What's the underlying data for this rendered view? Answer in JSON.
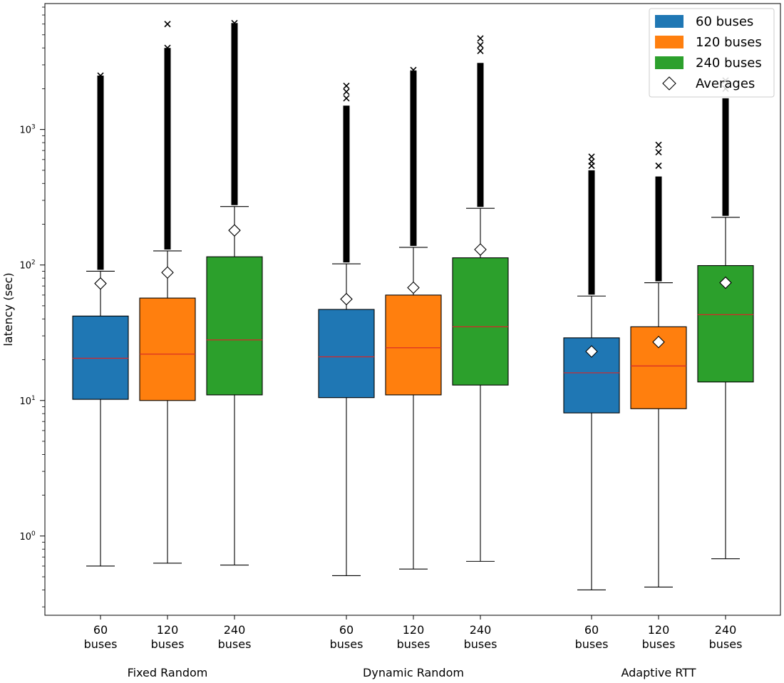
{
  "chart_data": {
    "type": "boxplot",
    "ylabel": "latency (sec)",
    "yscale": "log",
    "ylim": [
      0.26,
      8500
    ],
    "yticks": [
      {
        "value": 1,
        "label": "10^0"
      },
      {
        "value": 10,
        "label": "10^1"
      },
      {
        "value": 100,
        "label": "10^2"
      },
      {
        "value": 1000,
        "label": "10^3"
      }
    ],
    "legend": {
      "placement": "top-right",
      "entries": [
        {
          "label": "60 buses",
          "kind": "patch",
          "color": "#1f77b4"
        },
        {
          "label": "120 buses",
          "kind": "patch",
          "color": "#ff7f0e"
        },
        {
          "label": "240 buses",
          "kind": "patch",
          "color": "#2ca02c"
        },
        {
          "label": "Averages",
          "kind": "diamond",
          "color": "#ffffff"
        }
      ]
    },
    "median_color": "#d62728",
    "groups": [
      {
        "name": "Fixed Random",
        "boxes": [
          {
            "label_top": "60",
            "label_bottom": "buses",
            "color": "#1f77b4",
            "whisker_low": 0.6,
            "q1": 10.2,
            "median": 20.5,
            "q3": 42,
            "whisker_high": 90,
            "mean": 73,
            "outlier_max": 2500,
            "extreme_outliers": [
              2200,
              2350,
              2500
            ]
          },
          {
            "label_top": "120",
            "label_bottom": "buses",
            "color": "#ff7f0e",
            "whisker_low": 0.63,
            "q1": 10,
            "median": 22,
            "q3": 57,
            "whisker_high": 127,
            "mean": 88,
            "outlier_max": 4000,
            "extreme_outliers": [
              3600,
              4000,
              6000
            ]
          },
          {
            "label_top": "240",
            "label_bottom": "buses",
            "color": "#2ca02c",
            "whisker_low": 0.61,
            "q1": 11,
            "median": 28,
            "q3": 115,
            "whisker_high": 270,
            "mean": 180,
            "outlier_max": 6100,
            "extreme_outliers": [
              5800,
              6100
            ]
          }
        ]
      },
      {
        "name": "Dynamic Random",
        "boxes": [
          {
            "label_top": "60",
            "label_bottom": "buses",
            "color": "#1f77b4",
            "whisker_low": 0.51,
            "q1": 10.5,
            "median": 21,
            "q3": 47,
            "whisker_high": 102,
            "mean": 56,
            "outlier_max": 1500,
            "extreme_outliers": [
              1700,
              1900,
              2100
            ]
          },
          {
            "label_top": "120",
            "label_bottom": "buses",
            "color": "#ff7f0e",
            "whisker_low": 0.57,
            "q1": 11,
            "median": 24.5,
            "q3": 60,
            "whisker_high": 135,
            "mean": 68,
            "outlier_max": 2700,
            "extreme_outliers": [
              2400,
              2600,
              2750
            ]
          },
          {
            "label_top": "240",
            "label_bottom": "buses",
            "color": "#2ca02c",
            "whisker_low": 0.65,
            "q1": 13,
            "median": 35,
            "q3": 113,
            "whisker_high": 262,
            "mean": 130,
            "outlier_max": 3100,
            "extreme_outliers": [
              3800,
              4200,
              4700
            ]
          }
        ]
      },
      {
        "name": "Adaptive RTT",
        "boxes": [
          {
            "label_top": "60",
            "label_bottom": "buses",
            "color": "#1f77b4",
            "whisker_low": 0.4,
            "q1": 8.1,
            "median": 16,
            "q3": 29,
            "whisker_high": 59,
            "mean": 23,
            "outlier_max": 500,
            "extreme_outliers": [
              540,
              580,
              630
            ]
          },
          {
            "label_top": "120",
            "label_bottom": "buses",
            "color": "#ff7f0e",
            "whisker_low": 0.42,
            "q1": 8.7,
            "median": 18,
            "q3": 35,
            "whisker_high": 74,
            "mean": 27,
            "outlier_max": 450,
            "extreme_outliers": [
              540,
              680,
              770
            ]
          },
          {
            "label_top": "240",
            "label_bottom": "buses",
            "color": "#2ca02c",
            "whisker_low": 0.68,
            "q1": 13.7,
            "median": 43,
            "q3": 99,
            "whisker_high": 225,
            "mean": 74,
            "outlier_max": 1700,
            "extreme_outliers": [
              2000,
              2300
            ]
          }
        ]
      }
    ]
  }
}
